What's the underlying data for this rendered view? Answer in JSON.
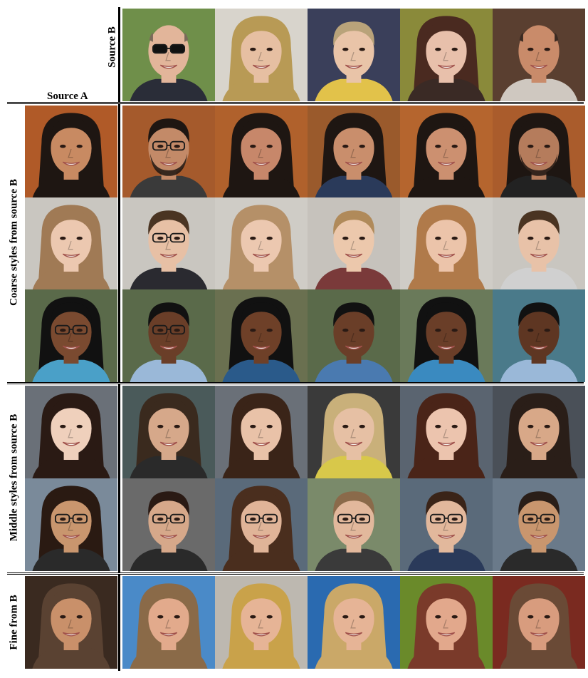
{
  "labels": {
    "source_a": "Source A",
    "source_b": "Source B",
    "coarse": "Coarse styles from source B",
    "middle": "Middle styles from source B",
    "fine": "Fine from B"
  },
  "grid": {
    "source_b_row": [
      {
        "icon": "bald-man-sunglasses-face",
        "bg": "#6f8f4a",
        "skin": "#e2b59a",
        "hair": "#7a6a5a",
        "cloth": "#2a2d38"
      },
      {
        "icon": "blonde-young-woman-face",
        "bg": "#d8d4cc",
        "skin": "#e6bfa2",
        "hair": "#b89a55",
        "cloth": "#b89a55"
      },
      {
        "icon": "blond-toddler-face",
        "bg": "#3a3f5a",
        "skin": "#e9c4a8",
        "hair": "#b9a37a",
        "cloth": "#e2c24a"
      },
      {
        "icon": "smiling-woman-bangs-face",
        "bg": "#8a8a3a",
        "skin": "#e8c0ab",
        "hair": "#4a2a20",
        "cloth": "#3a2a25"
      },
      {
        "icon": "bald-older-man-face",
        "bg": "#5a3f30",
        "skin": "#c98b6a",
        "hair": "#3a2a22",
        "cloth": "#cfc8c0"
      }
    ],
    "coarse_rows": [
      [
        {
          "icon": "curly-dark-hair-woman-face",
          "bg": "#b05a28",
          "skin": "#c88a62",
          "hair": "#1e1612",
          "cloth": "#1e1612"
        },
        {
          "icon": "man-glasses-beard-face",
          "bg": "#a55a2c",
          "skin": "#c38a68",
          "hair": "#1e1612",
          "cloth": "#3a3a3a"
        },
        {
          "icon": "curly-hair-woman-face",
          "bg": "#b0612c",
          "skin": "#c7876a",
          "hair": "#1e1612",
          "cloth": "#1e1612"
        },
        {
          "icon": "curly-hair-child-face",
          "bg": "#9a5a2c",
          "skin": "#c98e6c",
          "hair": "#1e1612",
          "cloth": "#2a3a5a"
        },
        {
          "icon": "curly-hair-bangs-woman-face",
          "bg": "#b5652e",
          "skin": "#cc9070",
          "hair": "#1e1612",
          "cloth": "#1e1612"
        },
        {
          "icon": "curly-hair-man-beard-face",
          "bg": "#aa5c2c",
          "skin": "#b57c5c",
          "hair": "#1e1612",
          "cloth": "#222"
        }
      ],
      [
        {
          "icon": "light-brown-hair-woman-face",
          "bg": "#c9c6c0",
          "skin": "#ecc8b0",
          "hair": "#a07a55",
          "cloth": "#a07a55"
        },
        {
          "icon": "man-glasses-face",
          "bg": "#c9c6c0",
          "skin": "#e7c0a5",
          "hair": "#4a3422",
          "cloth": "#2a2a30"
        },
        {
          "icon": "light-brown-hair-woman-face",
          "bg": "#cfccc6",
          "skin": "#ecc8b0",
          "hair": "#b59068",
          "cloth": "#b59068"
        },
        {
          "icon": "light-hair-toddler-face",
          "bg": "#c6c2bc",
          "skin": "#ecc8ac",
          "hair": "#b08a5a",
          "cloth": "#7a3a3a"
        },
        {
          "icon": "bangs-smiling-woman-face",
          "bg": "#cfccc6",
          "skin": "#ecc4aa",
          "hair": "#b07a4a",
          "cloth": "#b07a4a"
        },
        {
          "icon": "short-hair-man-face",
          "bg": "#c9c6c0",
          "skin": "#e8c2a8",
          "hair": "#4a3422",
          "cloth": "#d0d0d0"
        }
      ],
      [
        {
          "icon": "woman-glasses-dark-skin-face",
          "bg": "#5a6a4a",
          "skin": "#7a4a30",
          "hair": "#111",
          "cloth": "#4aa0c8"
        },
        {
          "icon": "man-glasses-dark-skin-face",
          "bg": "#5a6a4a",
          "skin": "#6a3e28",
          "hair": "#111",
          "cloth": "#9ab8d8"
        },
        {
          "icon": "long-hair-woman-dark-skin-face",
          "bg": "#6a7050",
          "skin": "#6e4028",
          "hair": "#111",
          "cloth": "#2a5a8a"
        },
        {
          "icon": "child-dark-skin-face",
          "bg": "#5a6a4a",
          "skin": "#6a3e28",
          "hair": "#111",
          "cloth": "#4a7ab0"
        },
        {
          "icon": "bangs-woman-dark-skin-face",
          "bg": "#6a7a5a",
          "skin": "#6a3e28",
          "hair": "#111",
          "cloth": "#3a8ac0"
        },
        {
          "icon": "man-dark-skin-face",
          "bg": "#4a7a8a",
          "skin": "#5e3622",
          "hair": "#111",
          "cloth": "#9ab8d8"
        }
      ]
    ],
    "middle_rows": [
      [
        {
          "icon": "long-dark-hair-woman-face",
          "bg": "#6a7078",
          "skin": "#efd0bc",
          "hair": "#2a1a14",
          "cloth": "#2a1a14"
        },
        {
          "icon": "older-woman-face",
          "bg": "#4a5a5a",
          "skin": "#d6a88a",
          "hair": "#3a2a1e",
          "cloth": "#2a2a2a"
        },
        {
          "icon": "long-hair-young-woman-face",
          "bg": "#6a7078",
          "skin": "#e9c2a8",
          "hair": "#3a2418",
          "cloth": "#3a2418"
        },
        {
          "icon": "blonde-woman-face",
          "bg": "#3a3a3a",
          "skin": "#e6c0a4",
          "hair": "#c9b07a",
          "cloth": "#d8c84a"
        },
        {
          "icon": "long-hair-smiling-woman-face",
          "bg": "#5a6470",
          "skin": "#ecc4ae",
          "hair": "#4a2418",
          "cloth": "#4a2418"
        },
        {
          "icon": "curly-hair-older-woman-face",
          "bg": "#4a5058",
          "skin": "#d8a888",
          "hair": "#2a1e18",
          "cloth": "#2a1e18"
        }
      ],
      [
        {
          "icon": "curly-hair-man-glasses-face",
          "bg": "#7a8a9a",
          "skin": "#c9966e",
          "hair": "#2a1a12",
          "cloth": "#2a2a2a"
        },
        {
          "icon": "man-glasses-face",
          "bg": "#6a6a6a",
          "skin": "#d6a88a",
          "hair": "#2a1a14",
          "cloth": "#2a2a2a"
        },
        {
          "icon": "bob-hair-person-glasses-face",
          "bg": "#5a6a7a",
          "skin": "#e0b498",
          "hair": "#4a2e1e",
          "cloth": "#4a2e1e"
        },
        {
          "icon": "young-man-glasses-face",
          "bg": "#7a8a6a",
          "skin": "#e2b89c",
          "hair": "#8a6a4a",
          "cloth": "#3a3a3a"
        },
        {
          "icon": "young-man-glasses-face",
          "bg": "#5a6a7a",
          "skin": "#e2b89c",
          "hair": "#3a2418",
          "cloth": "#2a3a5a"
        },
        {
          "icon": "older-man-glasses-face",
          "bg": "#6a7a8a",
          "skin": "#c9966e",
          "hair": "#2a1e18",
          "cloth": "#2a2a2a"
        }
      ]
    ],
    "fine_row": [
      {
        "icon": "long-hair-woman-face",
        "bg": "#3a2a20",
        "skin": "#c9906a",
        "hair": "#5a4232",
        "cloth": "#5a4232"
      },
      {
        "icon": "long-hair-woman-face",
        "bg": "#4a8ac8",
        "skin": "#e2aa8c",
        "hair": "#8a6a48",
        "cloth": "#8a6a48"
      },
      {
        "icon": "blonde-long-hair-woman-face",
        "bg": "#bdb8b0",
        "skin": "#e6b496",
        "hair": "#c9a24a",
        "cloth": "#c9a24a"
      },
      {
        "icon": "blonde-long-hair-woman-face",
        "bg": "#2a6ab0",
        "skin": "#e6b496",
        "hair": "#caa868",
        "cloth": "#caa868"
      },
      {
        "icon": "brown-long-hair-woman-face",
        "bg": "#6a8a2a",
        "skin": "#e2a88c",
        "hair": "#7a3a2a",
        "cloth": "#7a3a2a"
      },
      {
        "icon": "long-hair-woman-face",
        "bg": "#7a2a20",
        "skin": "#d89c7e",
        "hair": "#6a4a36",
        "cloth": "#6a4a36"
      }
    ]
  }
}
